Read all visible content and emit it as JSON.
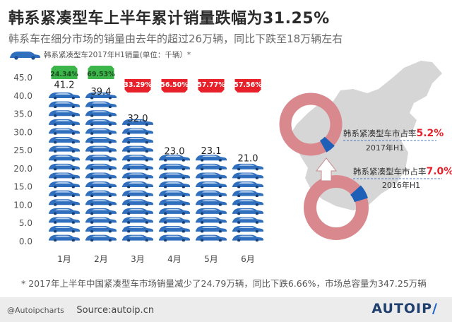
{
  "header": {
    "title": "韩系紧凑型车上半年累计销量跌幅为31.25%",
    "subtitle": "韩系车在细分市场的销量由去年的超过26万辆，同比下跌至18万辆左右",
    "legend_label": "韩系紧凑型车2017年H1销量(单位：千辆）*"
  },
  "chart_data": {
    "type": "bar",
    "title": "韩系紧凑型车2017年H1销量(单位：千辆）*",
    "categories": [
      "1月",
      "2月",
      "3月",
      "4月",
      "5月",
      "6月"
    ],
    "values": [
      41.2,
      39.4,
      32.0,
      23.0,
      23.1,
      21.0
    ],
    "value_labels": [
      "41.2",
      "39.4",
      "32.0",
      "23.0",
      "23.1",
      "21.0"
    ],
    "yoy_changes": [
      "24.34%",
      "69.53%",
      "33.29%",
      "56.50%",
      "57.77%",
      "57.56%"
    ],
    "yoy_direction": [
      "up",
      "up",
      "down",
      "down",
      "down",
      "down"
    ],
    "yticks": [
      "0.0",
      "5.0",
      "10.0",
      "15.0",
      "20.0",
      "25.0",
      "30.0",
      "35.0",
      "40.0",
      "45.0"
    ],
    "ylim": [
      0,
      45
    ],
    "xlabel": "",
    "ylabel": "",
    "colors": {
      "bar": "#2f6fbd",
      "bar_dark": "#1f4f8f",
      "up": "#3cb54a",
      "down": "#e8202a"
    }
  },
  "share_chart": {
    "share_2017": {
      "label_prefix": "韩系紧凑型车市占率",
      "value": "5.2%",
      "year": "2017年H1",
      "fraction": 0.052
    },
    "share_2016": {
      "label_prefix": "韩系紧凑型车市占率",
      "value": "7.0%",
      "year": "2016年H1",
      "fraction": 0.07
    },
    "colors": {
      "ring": "#d9888e",
      "highlight": "#1e5fb8",
      "value_text": "#e8202a",
      "map": "#d6d6d6",
      "arrow": "#ffffff"
    }
  },
  "footnote": "* 2017年上半年中国紧凑型车市场销量减少了24.79万辆，同比下跌6.66%，市场总容量为347.25万辆",
  "footer": {
    "handle": "@Autoipcharts",
    "source": "Source:autoip.cn",
    "brand_main": "AUTOIP",
    "brand_slash": "/"
  }
}
